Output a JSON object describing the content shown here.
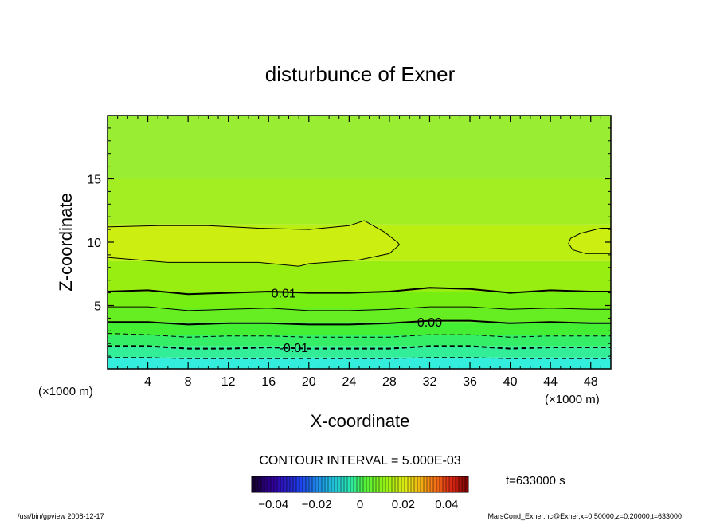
{
  "chart_data": {
    "type": "contour",
    "title": "disturbunce of Exner",
    "xlabel": "X-coordinate",
    "ylabel": "Z-coordinate",
    "x_unit_left": "(×1000 m)",
    "x_unit_right": "(×1000 m)",
    "xlim": [
      0,
      50
    ],
    "ylim": [
      0,
      20
    ],
    "xticks": [
      4,
      8,
      12,
      16,
      20,
      24,
      28,
      32,
      36,
      40,
      44,
      48
    ],
    "yticks": [
      5,
      10,
      15
    ],
    "contour_interval_text": "CONTOUR INTERVAL = 5.000E-03",
    "time_text": "t=633000 s",
    "colorbar": {
      "min": -0.05,
      "max": 0.05,
      "ticks": [
        -0.04,
        -0.02,
        0,
        0.02,
        0.04
      ],
      "tick_labels": [
        "−0.04",
        "−0.02",
        "0",
        "0.02",
        "0.04"
      ]
    },
    "contour_labels": [
      {
        "text": "0.01",
        "x": 17.5,
        "z": 6.0
      },
      {
        "text": "0.00",
        "x": 32.0,
        "z": 3.7
      },
      {
        "text": "-0.01",
        "x": 18.5,
        "z": 1.7
      }
    ],
    "contour_lines": [
      {
        "level": 0.015,
        "style": "thin",
        "points": [
          [
            0,
            11.2
          ],
          [
            5,
            11.3
          ],
          [
            10,
            11.3
          ],
          [
            15,
            11.1
          ],
          [
            20,
            11.0
          ],
          [
            24,
            11.3
          ],
          [
            25.5,
            11.7
          ],
          [
            27.5,
            10.8
          ],
          [
            28.8,
            10.0
          ],
          [
            29,
            9.8
          ],
          [
            28,
            9.1
          ],
          [
            25,
            8.6
          ],
          [
            20,
            8.3
          ],
          [
            19,
            8.1
          ],
          [
            15,
            8.4
          ],
          [
            10,
            8.4
          ],
          [
            6,
            8.4
          ],
          [
            3,
            8.6
          ],
          [
            0,
            8.8
          ]
        ]
      },
      {
        "level": 0.015,
        "style": "thin",
        "points": [
          [
            50,
            11.1
          ],
          [
            49,
            11.1
          ],
          [
            47,
            10.7
          ],
          [
            46,
            10.3
          ],
          [
            45.8,
            9.9
          ],
          [
            46.2,
            9.4
          ],
          [
            47.5,
            9.1
          ],
          [
            49,
            9.1
          ],
          [
            50,
            9.1
          ]
        ]
      },
      {
        "level": 0.01,
        "style": "thick",
        "points": [
          [
            0,
            6.1
          ],
          [
            4,
            6.2
          ],
          [
            8,
            5.9
          ],
          [
            12,
            6.0
          ],
          [
            16,
            6.1
          ],
          [
            20,
            6.0
          ],
          [
            24,
            6.0
          ],
          [
            28,
            6.1
          ],
          [
            32,
            6.4
          ],
          [
            36,
            6.3
          ],
          [
            40,
            6.0
          ],
          [
            44,
            6.2
          ],
          [
            48,
            6.1
          ],
          [
            50,
            6.1
          ]
        ]
      },
      {
        "level": 0.005,
        "style": "thin",
        "points": [
          [
            0,
            4.9
          ],
          [
            4,
            4.9
          ],
          [
            8,
            4.6
          ],
          [
            12,
            4.7
          ],
          [
            16,
            4.8
          ],
          [
            20,
            4.6
          ],
          [
            24,
            4.6
          ],
          [
            28,
            4.7
          ],
          [
            32,
            4.9
          ],
          [
            36,
            4.9
          ],
          [
            40,
            4.7
          ],
          [
            44,
            4.8
          ],
          [
            48,
            4.7
          ],
          [
            50,
            4.7
          ]
        ]
      },
      {
        "level": 0.0,
        "style": "thick",
        "points": [
          [
            0,
            3.7
          ],
          [
            4,
            3.7
          ],
          [
            8,
            3.5
          ],
          [
            12,
            3.6
          ],
          [
            16,
            3.6
          ],
          [
            20,
            3.5
          ],
          [
            24,
            3.5
          ],
          [
            28,
            3.6
          ],
          [
            32,
            3.8
          ],
          [
            36,
            3.8
          ],
          [
            40,
            3.6
          ],
          [
            44,
            3.7
          ],
          [
            48,
            3.6
          ],
          [
            50,
            3.6
          ]
        ]
      },
      {
        "level": -0.005,
        "style": "dashed-thin",
        "points": [
          [
            0,
            2.8
          ],
          [
            4,
            2.7
          ],
          [
            8,
            2.5
          ],
          [
            12,
            2.6
          ],
          [
            16,
            2.6
          ],
          [
            20,
            2.5
          ],
          [
            24,
            2.5
          ],
          [
            28,
            2.5
          ],
          [
            32,
            2.7
          ],
          [
            36,
            2.7
          ],
          [
            40,
            2.5
          ],
          [
            44,
            2.6
          ],
          [
            48,
            2.6
          ],
          [
            50,
            2.6
          ]
        ]
      },
      {
        "level": -0.01,
        "style": "dashed-thick",
        "points": [
          [
            0,
            1.8
          ],
          [
            4,
            1.8
          ],
          [
            8,
            1.6
          ],
          [
            12,
            1.6
          ],
          [
            16,
            1.7
          ],
          [
            20,
            1.6
          ],
          [
            24,
            1.6
          ],
          [
            28,
            1.6
          ],
          [
            32,
            1.8
          ],
          [
            36,
            1.8
          ],
          [
            40,
            1.6
          ],
          [
            44,
            1.7
          ],
          [
            48,
            1.7
          ],
          [
            50,
            1.7
          ]
        ]
      },
      {
        "level": -0.015,
        "style": "dashed-thin",
        "points": [
          [
            0,
            0.9
          ],
          [
            4,
            0.9
          ],
          [
            8,
            0.8
          ],
          [
            12,
            0.8
          ],
          [
            16,
            0.8
          ],
          [
            20,
            0.8
          ],
          [
            24,
            0.8
          ],
          [
            28,
            0.8
          ],
          [
            32,
            0.9
          ],
          [
            36,
            0.9
          ],
          [
            40,
            0.8
          ],
          [
            44,
            0.8
          ],
          [
            48,
            0.8
          ],
          [
            50,
            0.8
          ]
        ]
      }
    ],
    "fill_bands": [
      {
        "z0": 0,
        "z1": 0.9,
        "color": "#33eedd"
      },
      {
        "z0": 0.9,
        "z1": 1.8,
        "color": "#33ee99"
      },
      {
        "z0": 1.8,
        "z1": 2.7,
        "color": "#33ee66"
      },
      {
        "z0": 2.7,
        "z1": 3.7,
        "color": "#44ee33"
      },
      {
        "z0": 3.7,
        "z1": 4.8,
        "color": "#66ee22"
      },
      {
        "z0": 4.8,
        "z1": 6.1,
        "color": "#77ee11"
      },
      {
        "z0": 6.1,
        "z1": 8.5,
        "color": "#99ee11"
      },
      {
        "z0": 8.5,
        "z1": 11.4,
        "color": "#bbee11"
      },
      {
        "z0": 11.4,
        "z1": 15.0,
        "color": "#a3ee22"
      },
      {
        "z0": 15.0,
        "z1": 20.0,
        "color": "#99ee33"
      }
    ]
  },
  "footer": {
    "left": "/usr/bin/gpview  2008-12-17",
    "right": "MarsCond_Exner.nc@Exner,x=0:50000,z=0:20000,t=633000"
  }
}
